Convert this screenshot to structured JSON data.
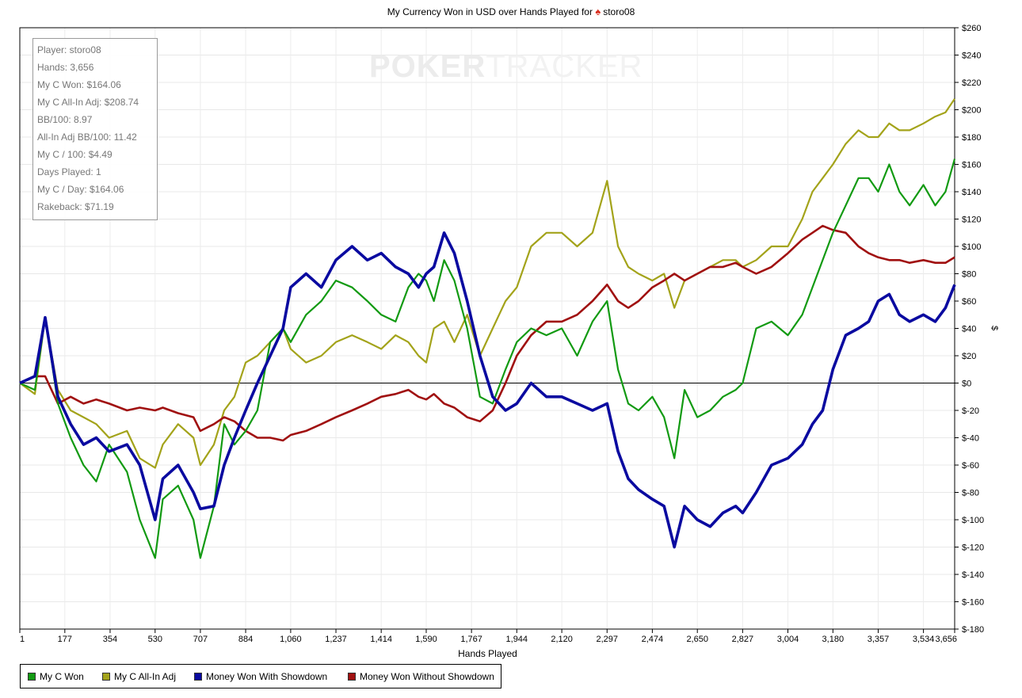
{
  "chart_data": {
    "type": "line",
    "title": "My Currency Won in USD over Hands Played for",
    "title_player": "storo08",
    "xlabel": "Hands Played",
    "ylabel": "$",
    "xlim": [
      1,
      3656
    ],
    "ylim": [
      -180,
      260
    ],
    "x_ticks": [
      "1",
      "177",
      "354",
      "530",
      "707",
      "884",
      "1,060",
      "1,237",
      "1,414",
      "1,590",
      "1,767",
      "1,944",
      "2,120",
      "2,297",
      "2,474",
      "2,650",
      "2,827",
      "3,004",
      "3,180",
      "3,357",
      "3,534",
      "3,656"
    ],
    "y_ticks": [
      "$260",
      "$240",
      "$220",
      "$200",
      "$180",
      "$160",
      "$140",
      "$120",
      "$100",
      "$80",
      "$60",
      "$40",
      "$20",
      "$0",
      "$-20",
      "$-40",
      "$-60",
      "$-80",
      "$-100",
      "$-120",
      "$-140",
      "$-160",
      "$-180"
    ],
    "grid": true,
    "legend_position": "bottom",
    "series": [
      {
        "name": "My C Won",
        "color": "#129a12",
        "points": [
          [
            1,
            0
          ],
          [
            60,
            -5
          ],
          [
            100,
            48
          ],
          [
            150,
            -15
          ],
          [
            200,
            -40
          ],
          [
            250,
            -60
          ],
          [
            300,
            -72
          ],
          [
            350,
            -45
          ],
          [
            420,
            -65
          ],
          [
            470,
            -100
          ],
          [
            530,
            -128
          ],
          [
            560,
            -85
          ],
          [
            620,
            -75
          ],
          [
            680,
            -100
          ],
          [
            707,
            -128
          ],
          [
            760,
            -90
          ],
          [
            800,
            -30
          ],
          [
            840,
            -45
          ],
          [
            884,
            -35
          ],
          [
            930,
            -20
          ],
          [
            980,
            30
          ],
          [
            1030,
            40
          ],
          [
            1060,
            30
          ],
          [
            1120,
            50
          ],
          [
            1180,
            60
          ],
          [
            1237,
            75
          ],
          [
            1300,
            70
          ],
          [
            1360,
            60
          ],
          [
            1414,
            50
          ],
          [
            1470,
            45
          ],
          [
            1520,
            70
          ],
          [
            1560,
            80
          ],
          [
            1590,
            75
          ],
          [
            1620,
            60
          ],
          [
            1660,
            90
          ],
          [
            1700,
            75
          ],
          [
            1750,
            40
          ],
          [
            1800,
            -10
          ],
          [
            1850,
            -15
          ],
          [
            1900,
            10
          ],
          [
            1944,
            30
          ],
          [
            2000,
            40
          ],
          [
            2060,
            35
          ],
          [
            2120,
            40
          ],
          [
            2180,
            20
          ],
          [
            2240,
            45
          ],
          [
            2297,
            60
          ],
          [
            2340,
            10
          ],
          [
            2380,
            -15
          ],
          [
            2420,
            -20
          ],
          [
            2474,
            -10
          ],
          [
            2520,
            -25
          ],
          [
            2560,
            -55
          ],
          [
            2600,
            -5
          ],
          [
            2650,
            -25
          ],
          [
            2700,
            -20
          ],
          [
            2750,
            -10
          ],
          [
            2800,
            -5
          ],
          [
            2827,
            0
          ],
          [
            2880,
            40
          ],
          [
            2940,
            45
          ],
          [
            3004,
            35
          ],
          [
            3060,
            50
          ],
          [
            3100,
            70
          ],
          [
            3140,
            90
          ],
          [
            3180,
            110
          ],
          [
            3230,
            130
          ],
          [
            3280,
            150
          ],
          [
            3320,
            150
          ],
          [
            3357,
            140
          ],
          [
            3400,
            160
          ],
          [
            3440,
            140
          ],
          [
            3480,
            130
          ],
          [
            3534,
            145
          ],
          [
            3580,
            130
          ],
          [
            3620,
            140
          ],
          [
            3656,
            164
          ]
        ]
      },
      {
        "name": "My C All-In Adj",
        "color": "#a3a31a",
        "points": [
          [
            1,
            0
          ],
          [
            60,
            -8
          ],
          [
            100,
            48
          ],
          [
            150,
            -5
          ],
          [
            200,
            -20
          ],
          [
            250,
            -25
          ],
          [
            300,
            -30
          ],
          [
            350,
            -40
          ],
          [
            420,
            -35
          ],
          [
            470,
            -55
          ],
          [
            530,
            -62
          ],
          [
            560,
            -45
          ],
          [
            620,
            -30
          ],
          [
            680,
            -40
          ],
          [
            707,
            -60
          ],
          [
            760,
            -45
          ],
          [
            800,
            -20
          ],
          [
            840,
            -10
          ],
          [
            884,
            15
          ],
          [
            930,
            20
          ],
          [
            980,
            30
          ],
          [
            1030,
            40
          ],
          [
            1060,
            25
          ],
          [
            1120,
            15
          ],
          [
            1180,
            20
          ],
          [
            1237,
            30
          ],
          [
            1300,
            35
          ],
          [
            1360,
            30
          ],
          [
            1414,
            25
          ],
          [
            1470,
            35
          ],
          [
            1520,
            30
          ],
          [
            1560,
            20
          ],
          [
            1590,
            15
          ],
          [
            1620,
            40
          ],
          [
            1660,
            45
          ],
          [
            1700,
            30
          ],
          [
            1750,
            50
          ],
          [
            1800,
            20
          ],
          [
            1850,
            40
          ],
          [
            1900,
            60
          ],
          [
            1944,
            70
          ],
          [
            2000,
            100
          ],
          [
            2060,
            110
          ],
          [
            2120,
            110
          ],
          [
            2180,
            100
          ],
          [
            2240,
            110
          ],
          [
            2297,
            148
          ],
          [
            2340,
            100
          ],
          [
            2380,
            85
          ],
          [
            2420,
            80
          ],
          [
            2474,
            75
          ],
          [
            2520,
            80
          ],
          [
            2560,
            55
          ],
          [
            2600,
            75
          ],
          [
            2650,
            80
          ],
          [
            2700,
            85
          ],
          [
            2750,
            90
          ],
          [
            2800,
            90
          ],
          [
            2827,
            85
          ],
          [
            2880,
            90
          ],
          [
            2940,
            100
          ],
          [
            3004,
            100
          ],
          [
            3060,
            120
          ],
          [
            3100,
            140
          ],
          [
            3140,
            150
          ],
          [
            3180,
            160
          ],
          [
            3230,
            175
          ],
          [
            3280,
            185
          ],
          [
            3320,
            180
          ],
          [
            3357,
            180
          ],
          [
            3400,
            190
          ],
          [
            3440,
            185
          ],
          [
            3480,
            185
          ],
          [
            3534,
            190
          ],
          [
            3580,
            195
          ],
          [
            3620,
            198
          ],
          [
            3656,
            208
          ]
        ]
      },
      {
        "name": "Money Won With Showdown",
        "color": "#0a0aa0",
        "points": [
          [
            1,
            0
          ],
          [
            60,
            5
          ],
          [
            100,
            48
          ],
          [
            150,
            -10
          ],
          [
            200,
            -30
          ],
          [
            250,
            -45
          ],
          [
            300,
            -40
          ],
          [
            350,
            -50
          ],
          [
            420,
            -45
          ],
          [
            470,
            -60
          ],
          [
            530,
            -100
          ],
          [
            560,
            -70
          ],
          [
            620,
            -60
          ],
          [
            680,
            -80
          ],
          [
            707,
            -92
          ],
          [
            760,
            -90
          ],
          [
            800,
            -60
          ],
          [
            840,
            -40
          ],
          [
            884,
            -20
          ],
          [
            930,
            0
          ],
          [
            980,
            20
          ],
          [
            1030,
            40
          ],
          [
            1060,
            70
          ],
          [
            1120,
            80
          ],
          [
            1180,
            70
          ],
          [
            1237,
            90
          ],
          [
            1300,
            100
          ],
          [
            1360,
            90
          ],
          [
            1414,
            95
          ],
          [
            1470,
            85
          ],
          [
            1520,
            80
          ],
          [
            1560,
            70
          ],
          [
            1590,
            80
          ],
          [
            1620,
            85
          ],
          [
            1660,
            110
          ],
          [
            1700,
            95
          ],
          [
            1750,
            60
          ],
          [
            1800,
            20
          ],
          [
            1850,
            -10
          ],
          [
            1900,
            -20
          ],
          [
            1944,
            -15
          ],
          [
            2000,
            0
          ],
          [
            2060,
            -10
          ],
          [
            2120,
            -10
          ],
          [
            2180,
            -15
          ],
          [
            2240,
            -20
          ],
          [
            2297,
            -15
          ],
          [
            2340,
            -50
          ],
          [
            2380,
            -70
          ],
          [
            2420,
            -78
          ],
          [
            2474,
            -85
          ],
          [
            2520,
            -90
          ],
          [
            2560,
            -120
          ],
          [
            2600,
            -90
          ],
          [
            2650,
            -100
          ],
          [
            2700,
            -105
          ],
          [
            2750,
            -95
          ],
          [
            2800,
            -90
          ],
          [
            2827,
            -95
          ],
          [
            2880,
            -80
          ],
          [
            2940,
            -60
          ],
          [
            3004,
            -55
          ],
          [
            3060,
            -45
          ],
          [
            3100,
            -30
          ],
          [
            3140,
            -20
          ],
          [
            3180,
            10
          ],
          [
            3230,
            35
          ],
          [
            3280,
            40
          ],
          [
            3320,
            45
          ],
          [
            3357,
            60
          ],
          [
            3400,
            65
          ],
          [
            3440,
            50
          ],
          [
            3480,
            45
          ],
          [
            3534,
            50
          ],
          [
            3580,
            45
          ],
          [
            3620,
            55
          ],
          [
            3656,
            72
          ]
        ]
      },
      {
        "name": "Money Won Without Showdown",
        "color": "#a01010",
        "points": [
          [
            1,
            0
          ],
          [
            60,
            5
          ],
          [
            100,
            5
          ],
          [
            150,
            -15
          ],
          [
            200,
            -10
          ],
          [
            250,
            -15
          ],
          [
            300,
            -12
          ],
          [
            350,
            -15
          ],
          [
            420,
            -20
          ],
          [
            470,
            -18
          ],
          [
            530,
            -20
          ],
          [
            560,
            -18
          ],
          [
            620,
            -22
          ],
          [
            680,
            -25
          ],
          [
            707,
            -35
          ],
          [
            760,
            -30
          ],
          [
            800,
            -25
          ],
          [
            840,
            -28
          ],
          [
            884,
            -35
          ],
          [
            930,
            -40
          ],
          [
            980,
            -40
          ],
          [
            1030,
            -42
          ],
          [
            1060,
            -38
          ],
          [
            1120,
            -35
          ],
          [
            1180,
            -30
          ],
          [
            1237,
            -25
          ],
          [
            1300,
            -20
          ],
          [
            1360,
            -15
          ],
          [
            1414,
            -10
          ],
          [
            1470,
            -8
          ],
          [
            1520,
            -5
          ],
          [
            1560,
            -10
          ],
          [
            1590,
            -12
          ],
          [
            1620,
            -8
          ],
          [
            1660,
            -15
          ],
          [
            1700,
            -18
          ],
          [
            1750,
            -25
          ],
          [
            1800,
            -28
          ],
          [
            1850,
            -20
          ],
          [
            1900,
            0
          ],
          [
            1944,
            20
          ],
          [
            2000,
            35
          ],
          [
            2060,
            45
          ],
          [
            2120,
            45
          ],
          [
            2180,
            50
          ],
          [
            2240,
            60
          ],
          [
            2297,
            72
          ],
          [
            2340,
            60
          ],
          [
            2380,
            55
          ],
          [
            2420,
            60
          ],
          [
            2474,
            70
          ],
          [
            2520,
            75
          ],
          [
            2560,
            80
          ],
          [
            2600,
            75
          ],
          [
            2650,
            80
          ],
          [
            2700,
            85
          ],
          [
            2750,
            85
          ],
          [
            2800,
            88
          ],
          [
            2827,
            85
          ],
          [
            2880,
            80
          ],
          [
            2940,
            85
          ],
          [
            3004,
            95
          ],
          [
            3060,
            105
          ],
          [
            3100,
            110
          ],
          [
            3140,
            115
          ],
          [
            3180,
            112
          ],
          [
            3230,
            110
          ],
          [
            3280,
            100
          ],
          [
            3320,
            95
          ],
          [
            3357,
            92
          ],
          [
            3400,
            90
          ],
          [
            3440,
            90
          ],
          [
            3480,
            88
          ],
          [
            3534,
            90
          ],
          [
            3580,
            88
          ],
          [
            3620,
            88
          ],
          [
            3656,
            92
          ]
        ]
      }
    ]
  },
  "stats": [
    "Player: storo08",
    "Hands: 3,656",
    "My C Won: $164.06",
    "My C All-In Adj: $208.74",
    "BB/100: 8.97",
    "All-In Adj BB/100: 11.42",
    "My C / 100: $4.49",
    "Days Played: 1",
    "My C / Day: $164.06",
    "Rakeback: $71.19"
  ],
  "watermark": {
    "part1": "POKER",
    "part2": "TRACKER"
  },
  "icons": {
    "title_icon": "spade-icon"
  }
}
